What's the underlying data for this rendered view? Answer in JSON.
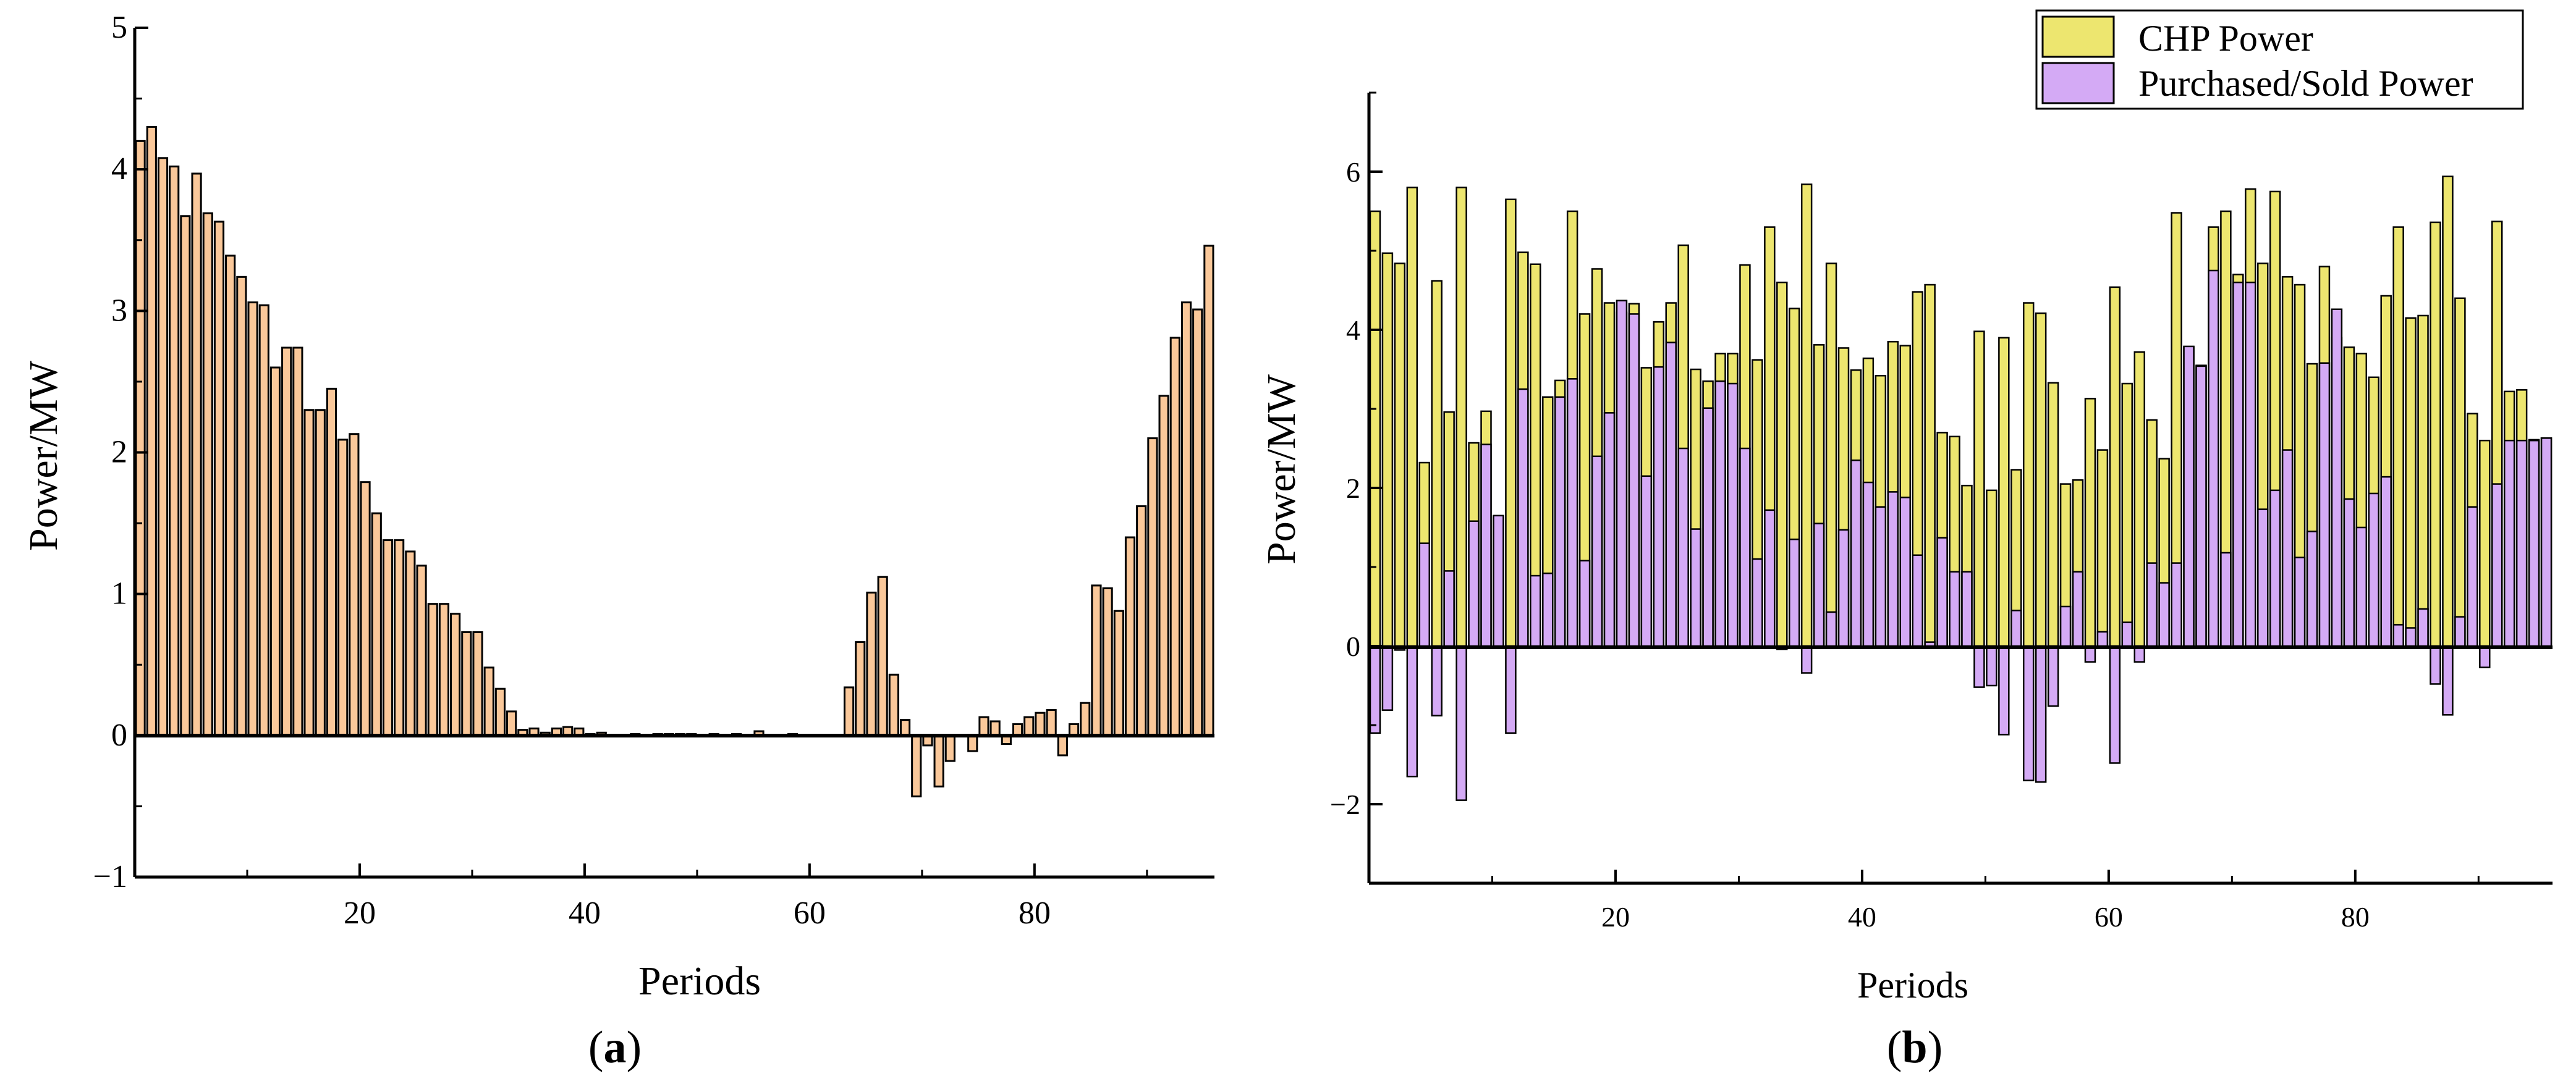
{
  "chart_data": [
    {
      "type": "bar",
      "panel_label": "a",
      "xlabel": "Periods",
      "ylabel": "Power/MW",
      "xlim": [
        0,
        96
      ],
      "ylim": [
        -1,
        5
      ],
      "x_ticks": [
        20,
        40,
        60,
        80
      ],
      "y_ticks": [
        -1,
        0,
        1,
        2,
        3,
        4,
        5
      ],
      "bar_color": "#FAC89A",
      "x": [
        1,
        2,
        3,
        4,
        5,
        6,
        7,
        8,
        9,
        10,
        11,
        12,
        13,
        14,
        15,
        16,
        17,
        18,
        19,
        20,
        21,
        22,
        23,
        24,
        25,
        26,
        27,
        28,
        29,
        30,
        31,
        32,
        33,
        34,
        35,
        36,
        37,
        38,
        39,
        40,
        41,
        42,
        43,
        44,
        45,
        46,
        47,
        48,
        49,
        50,
        51,
        52,
        53,
        54,
        55,
        56,
        57,
        58,
        59,
        60,
        61,
        62,
        63,
        64,
        65,
        66,
        67,
        68,
        69,
        70,
        71,
        72,
        73,
        74,
        75,
        76,
        77,
        78,
        79,
        80,
        81,
        82,
        83,
        84,
        85,
        86,
        87,
        88,
        89,
        90,
        91,
        92,
        93,
        94,
        95,
        96
      ],
      "values": [
        4.2,
        4.3,
        4.08,
        4.02,
        3.67,
        3.97,
        3.69,
        3.63,
        3.39,
        3.24,
        3.06,
        3.04,
        2.6,
        2.74,
        2.74,
        2.3,
        2.3,
        2.45,
        2.09,
        2.13,
        1.79,
        1.57,
        1.38,
        1.38,
        1.3,
        1.2,
        0.93,
        0.93,
        0.86,
        0.73,
        0.73,
        0.48,
        0.33,
        0.17,
        0.04,
        0.05,
        0.02,
        0.05,
        0.06,
        0.05,
        0.01,
        0.02,
        0.0,
        0.0,
        0.01,
        0.0,
        0.01,
        0.01,
        0.01,
        0.01,
        0.0,
        0.01,
        0.0,
        0.01,
        0.0,
        0.03,
        0.0,
        0.0,
        0.01,
        0.0,
        0.0,
        0.0,
        0.0,
        0.34,
        0.66,
        1.01,
        1.12,
        0.43,
        0.11,
        -0.43,
        -0.07,
        -0.36,
        -0.18,
        0.0,
        -0.11,
        0.13,
        0.1,
        -0.06,
        0.08,
        0.13,
        0.16,
        0.18,
        -0.14,
        0.08,
        0.23,
        1.06,
        1.04,
        0.88,
        1.4,
        1.62,
        2.1,
        2.4,
        2.81,
        3.06,
        3.01,
        3.46
      ]
    },
    {
      "type": "bar",
      "panel_label": "b",
      "xlabel": "Periods",
      "ylabel": "Power/MW",
      "xlim": [
        0,
        96
      ],
      "ylim": [
        -3,
        7
      ],
      "x_ticks": [
        20,
        40,
        60,
        80
      ],
      "y_ticks": [
        -2,
        0,
        2,
        4,
        6
      ],
      "legend_placement": "top-right",
      "categories": [
        1,
        2,
        3,
        4,
        5,
        6,
        7,
        8,
        9,
        10,
        11,
        12,
        13,
        14,
        15,
        16,
        17,
        18,
        19,
        20,
        21,
        22,
        23,
        24,
        25,
        26,
        27,
        28,
        29,
        30,
        31,
        32,
        33,
        34,
        35,
        36,
        37,
        38,
        39,
        40,
        41,
        42,
        43,
        44,
        45,
        46,
        47,
        48,
        49,
        50,
        51,
        52,
        53,
        54,
        55,
        56,
        57,
        58,
        59,
        60,
        61,
        62,
        63,
        64,
        65,
        66,
        67,
        68,
        69,
        70,
        71,
        72,
        73,
        74,
        75,
        76,
        77,
        78,
        79,
        80,
        81,
        82,
        83,
        84,
        85,
        86,
        87,
        88,
        89,
        90,
        91,
        92,
        93,
        94,
        95,
        96
      ],
      "series": [
        {
          "name": "CHP Power",
          "color": "#EDE66F",
          "values": [
            5.5,
            4.97,
            4.84,
            5.8,
            2.32,
            4.62,
            2.96,
            5.8,
            2.57,
            2.97,
            1.63,
            5.65,
            4.98,
            4.83,
            3.15,
            3.36,
            5.5,
            4.2,
            4.77,
            4.34,
            4.22,
            4.33,
            3.52,
            4.1,
            4.34,
            5.07,
            3.5,
            3.35,
            3.7,
            3.7,
            4.82,
            3.62,
            5.3,
            4.6,
            4.27,
            5.84,
            3.81,
            4.84,
            3.77,
            3.49,
            3.64,
            3.42,
            3.85,
            3.8,
            4.48,
            4.57,
            2.7,
            2.65,
            2.03,
            3.98,
            1.97,
            3.9,
            2.23,
            4.34,
            4.21,
            3.33,
            2.05,
            2.1,
            3.13,
            2.48,
            4.54,
            3.32,
            3.72,
            2.86,
            2.37,
            5.48,
            3.78,
            3.55,
            5.3,
            5.5,
            4.7,
            5.78,
            4.84,
            5.75,
            4.67,
            4.57,
            3.57,
            4.8,
            3.9,
            3.78,
            3.7,
            3.4,
            4.43,
            5.3,
            4.15,
            4.18,
            5.36,
            5.94,
            4.4,
            2.94,
            2.6,
            5.37,
            3.22,
            3.24,
            2.61,
            2.63
          ]
        },
        {
          "name": "Purchased/Sold Power",
          "color": "#D4AAF5",
          "values": [
            -1.1,
            -0.81,
            -0.05,
            -1.65,
            1.3,
            -0.88,
            0.95,
            -1.95,
            1.58,
            2.55,
            1.65,
            -1.1,
            3.25,
            0.89,
            0.92,
            3.15,
            3.38,
            1.08,
            2.4,
            2.95,
            4.37,
            4.2,
            2.15,
            3.53,
            3.84,
            2.5,
            1.48,
            3.01,
            3.35,
            3.32,
            2.5,
            1.1,
            1.72,
            -0.04,
            1.35,
            -0.34,
            1.55,
            0.43,
            1.47,
            2.35,
            2.07,
            1.76,
            1.95,
            1.88,
            1.15,
            0.05,
            1.37,
            0.94,
            0.94,
            -0.52,
            -0.5,
            -1.12,
            0.45,
            -1.7,
            -1.72,
            -0.76,
            0.5,
            0.94,
            -0.2,
            0.18,
            -1.48,
            0.3,
            -0.2,
            1.05,
            0.8,
            1.05,
            3.79,
            3.54,
            4.75,
            1.18,
            4.6,
            4.6,
            1.73,
            1.97,
            2.48,
            1.12,
            1.45,
            3.58,
            4.26,
            1.86,
            1.5,
            1.93,
            2.14,
            0.27,
            0.23,
            0.47,
            -0.48,
            -0.87,
            0.37,
            1.76,
            -0.27,
            2.05,
            2.6,
            2.6,
            2.6,
            2.63
          ]
        }
      ]
    }
  ]
}
